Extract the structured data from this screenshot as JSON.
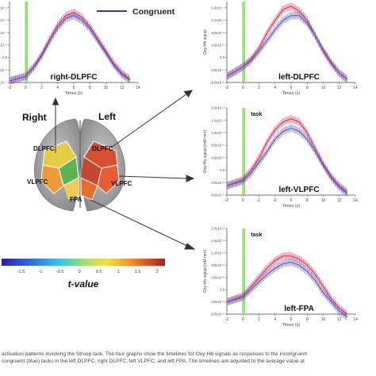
{
  "legend": {
    "congruent_label": "Congruent",
    "congruent_color": "#3a3a9a",
    "incongruent_color": "#d9385a"
  },
  "colors": {
    "task_bar": "#9be07a",
    "red": "#d9385a",
    "blue": "#5a5ab8"
  },
  "brain": {
    "right_label": "Right",
    "left_label": "Left",
    "region_labels": {
      "dlpfc_right": "DLPFC",
      "dlpfc_left": "DLPFC",
      "vlpfc_right": "VLPFC",
      "vlpfc_left": "VLPFC",
      "fpa": "FPA"
    }
  },
  "colorbar": {
    "ticks": [
      "-1.5",
      "-1",
      "-0.5",
      "0",
      "0.5",
      "1",
      "1.5",
      "2"
    ],
    "label": "t-value"
  },
  "chart_data": [
    {
      "type": "line",
      "title": "right-DLPFC",
      "task_label": "",
      "xlabel": "Times (s)",
      "ylabel": "",
      "xlim": [
        -2,
        14
      ],
      "ylim": [
        -8e-05,
        0.00018
      ],
      "x_ticks": [
        "-2",
        "0",
        "2",
        "4",
        "6",
        "8",
        "10",
        "12",
        "14"
      ],
      "y_ticks": [
        "-8.0x10⁻⁵",
        "-4.0x10⁻⁵",
        "0.0",
        "4.0x10⁻⁵",
        "8.0x10⁻⁵",
        "1.2x10⁻⁴",
        "1.6x10⁻⁴"
      ],
      "task_interval": [
        0,
        0.2
      ],
      "x": [
        -2,
        0,
        1,
        2,
        3,
        4,
        5,
        6,
        7,
        8,
        9,
        10,
        11,
        12,
        13
      ],
      "series": [
        {
          "name": "",
          "values": [
            -7.5e-05,
            -6e-05,
            -3e-05,
            1e-05,
            6e-05,
            0.000105,
            0.000135,
            0.000145,
            0.00013,
            0.0001,
            6e-05,
            2e-05,
            -2e-05,
            -5e-05,
            -7e-05
          ]
        },
        {
          "name": "Congruent",
          "values": [
            -7.5e-05,
            -6e-05,
            -3.2e-05,
            5e-06,
            5.2e-05,
            9.5e-05,
            0.000125,
            0.000135,
            0.00012,
            9.2e-05,
            5.3e-05,
            1.5e-05,
            -2.5e-05,
            -5.5e-05,
            -7.2e-05
          ]
        }
      ]
    },
    {
      "type": "line",
      "title": "left-DLPFC",
      "task_label": "",
      "xlabel": "Times (s)",
      "ylabel": "Oxy-Hb signal",
      "xlim": [
        -2,
        14
      ],
      "ylim": [
        -8e-05,
        0.00018
      ],
      "x_ticks": [
        "-2",
        "0",
        "2",
        "4",
        "6",
        "8",
        "10",
        "12",
        "14"
      ],
      "y_ticks": [
        "-8.0x10⁻⁵",
        "-4.0x10⁻⁵",
        "0.0",
        "4.0x10⁻⁵",
        "8.0x10⁻⁵",
        "1.2x10⁻⁴",
        "1.6x10⁻⁴"
      ],
      "task_interval": [
        0,
        0.2
      ],
      "x": [
        -2,
        0,
        1,
        2,
        3,
        4,
        5,
        6,
        7,
        8,
        9,
        10,
        11,
        12,
        13
      ],
      "series": [
        {
          "name": "",
          "values": [
            -6e-05,
            -3e-05,
            -5e-06,
            3e-05,
            8e-05,
            0.00012,
            0.000155,
            0.000165,
            0.00015,
            0.00012,
            7e-05,
            2e-05,
            -2e-05,
            -5e-05,
            -7e-05
          ]
        },
        {
          "name": "Congruent",
          "values": [
            -6e-05,
            -3e-05,
            -1e-05,
            2e-05,
            5.5e-05,
            9e-05,
            0.00012,
            0.000135,
            0.000135,
            0.00011,
            7e-05,
            2.5e-05,
            -1.5e-05,
            -5e-05,
            -7e-05
          ]
        }
      ]
    },
    {
      "type": "line",
      "title": "left-VLPFC",
      "task_label": "task",
      "xlabel": "Times (s)",
      "ylabel": "Oxy-Hb signal [mM.mm]",
      "xlim": [
        -2,
        14
      ],
      "ylim": [
        -8e-05,
        0.0002
      ],
      "x_ticks": [
        "-2",
        "0",
        "2",
        "4",
        "6",
        "8",
        "10",
        "12",
        "14"
      ],
      "y_ticks": [
        "-8.0x10⁻⁵",
        "-4.0x10⁻⁵",
        "0.0",
        "4.0x10⁻⁵",
        "8.0x10⁻⁵",
        "1.2x10⁻⁴",
        "1.6x10⁻⁴",
        "2.0x10⁻⁴"
      ],
      "task_interval": [
        0,
        0.2
      ],
      "x": [
        -2,
        0,
        1,
        2,
        3,
        4,
        5,
        6,
        7,
        8,
        9,
        10,
        11,
        12,
        13
      ],
      "series": [
        {
          "name": "",
          "values": [
            -5e-05,
            -3e-05,
            0,
            4e-05,
            9e-05,
            0.00013,
            0.000155,
            0.000165,
            0.000155,
            0.00012,
            7e-05,
            2e-05,
            -2e-05,
            -5e-05,
            -7e-05
          ]
        },
        {
          "name": "Congruent",
          "values": [
            -5e-05,
            -3.5e-05,
            -1e-05,
            2.5e-05,
            6e-05,
            0.0001,
            0.000125,
            0.000135,
            0.000125,
            0.0001,
            6e-05,
            1.5e-05,
            -2.5e-05,
            -5.5e-05,
            -7.5e-05
          ]
        }
      ]
    },
    {
      "type": "line",
      "title": "left-FPA",
      "task_label": "task",
      "xlabel": "Times (s)",
      "ylabel": "Oxy-Hb signal [mM.mm]",
      "xlim": [
        -2,
        14
      ],
      "ylim": [
        -8e-05,
        0.0002
      ],
      "x_ticks": [
        "-2",
        "0",
        "2",
        "4",
        "6",
        "8",
        "10",
        "12",
        "14"
      ],
      "y_ticks": [
        "-8.0x10⁻⁵",
        "-4.0x10⁻⁵",
        "0.0",
        "4.0x10⁻⁵",
        "8.0x10⁻⁵",
        "1.2x10⁻⁴",
        "1.6x10⁻⁴",
        "2.0x10⁻⁴"
      ],
      "task_interval": [
        0,
        0.2
      ],
      "x": [
        -2,
        0,
        1,
        2,
        3,
        4,
        5,
        6,
        7,
        8,
        9,
        10,
        11,
        12,
        13
      ],
      "series": [
        {
          "name": "",
          "values": [
            -4e-05,
            -2e-05,
            1e-05,
            4e-05,
            7e-05,
            9.5e-05,
            0.00011,
            0.00011,
            0.0001,
            8e-05,
            5e-05,
            1e-05,
            -3e-05,
            -6e-05,
            -8e-05
          ]
        },
        {
          "name": "Congruent",
          "values": [
            -4e-05,
            -2.5e-05,
            0,
            2.5e-05,
            5e-05,
            7e-05,
            8.5e-05,
            9e-05,
            8e-05,
            6e-05,
            3e-05,
            -1e-05,
            -4e-05,
            -7e-05,
            -9e-05
          ]
        }
      ]
    }
  ],
  "caption": {
    "line1": "activation patterns involving the Stroop task. The four graphs show the timelines for Oxy-Hb signals as responses to the incongruent",
    "line2": "congruent (blue) tasks in the left DLPFC, right DLPFC, left VLPFC, and left FPA. The timelines are adjusted to the average value at"
  }
}
